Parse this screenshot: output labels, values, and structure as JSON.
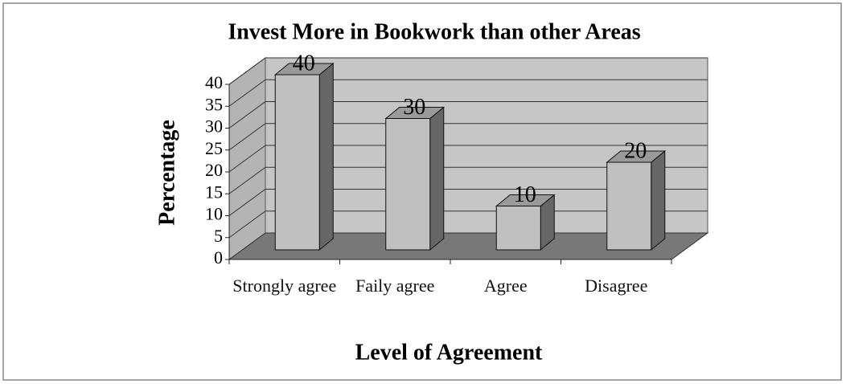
{
  "chart_data": {
    "type": "bar3d",
    "title": "Invest More in Bookwork than other Areas",
    "categories": [
      "Strongly agree",
      "Faily agree",
      "Agree",
      "Disagree"
    ],
    "values": [
      40,
      30,
      10,
      20
    ],
    "x_label": "Level of Agreement",
    "y_label": "Percentage",
    "ylim": [
      0,
      40
    ],
    "yticks": [
      0,
      5,
      10,
      15,
      20,
      25,
      30,
      35,
      40
    ],
    "grid": true,
    "color": "#c0c0c0"
  }
}
